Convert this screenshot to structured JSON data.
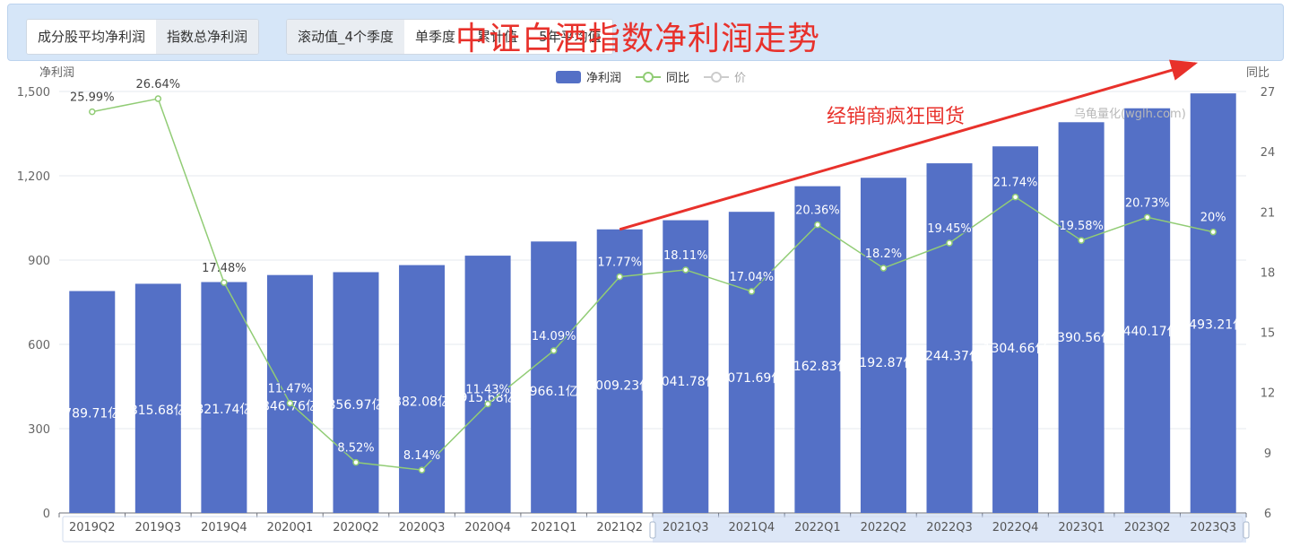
{
  "toolbar": {
    "group1": [
      "成分股平均净利润",
      "指数总净利润"
    ],
    "group2": [
      "滚动值_4个季度",
      "单季度",
      "累计值",
      "5年平均值"
    ]
  },
  "overlay_title": "中证白酒指数净利润走势",
  "annotation": "经销商疯狂囤货",
  "watermark": "乌龟量化(wglh.com)",
  "legend": {
    "bar": "净利润",
    "line": "同比",
    "price": "价"
  },
  "colors": {
    "bar": "#5470c6",
    "line": "#91cc75",
    "annotation": "#e8312b",
    "inactive": "#cccccc"
  },
  "chart_data": {
    "type": "bar",
    "categories": [
      "2019Q2",
      "2019Q3",
      "2019Q4",
      "2020Q1",
      "2020Q2",
      "2020Q3",
      "2020Q4",
      "2021Q1",
      "2021Q2",
      "2021Q3",
      "2021Q4",
      "2022Q1",
      "2022Q2",
      "2022Q3",
      "2022Q4",
      "2023Q1",
      "2023Q2",
      "2023Q3"
    ],
    "series": [
      {
        "name": "净利润",
        "type": "bar",
        "axis": "left",
        "values": [
          789.71,
          815.68,
          821.74,
          846.76,
          856.97,
          882.08,
          915.68,
          966.1,
          1009.23,
          1041.78,
          1071.69,
          1162.83,
          1192.87,
          1244.37,
          1304.66,
          1390.56,
          1440.17,
          1493.21
        ],
        "labels": [
          "789.71亿",
          "815.68亿",
          "821.74亿",
          "846.76亿",
          "856.97亿",
          "882.08亿",
          "915.68亿",
          "966.1亿",
          "1009.23亿",
          "1041.78亿",
          "1071.69亿",
          "1162.83亿",
          "1192.87亿",
          "1244.37亿",
          "1304.66亿",
          "1390.56亿",
          "1440.17亿",
          "1493.21亿"
        ]
      },
      {
        "name": "同比",
        "type": "line",
        "axis": "right",
        "values": [
          25.99,
          26.64,
          17.48,
          11.47,
          8.52,
          8.14,
          11.43,
          14.09,
          17.77,
          18.11,
          17.04,
          20.36,
          18.2,
          19.45,
          21.74,
          19.58,
          20.73,
          20
        ],
        "labels": [
          "25.99%",
          "26.64%",
          "17.48%",
          "11.47%",
          "8.52%",
          "8.14%",
          "11.43%",
          "14.09%",
          "17.77%",
          "18.11%",
          "17.04%",
          "20.36%",
          "18.2%",
          "19.45%",
          "21.74%",
          "19.58%",
          "20.73%",
          "20%"
        ]
      }
    ],
    "y_left": {
      "name": "净利润",
      "min": 0,
      "max": 1500,
      "ticks": [
        0,
        300,
        600,
        900,
        1200,
        1500
      ],
      "tick_labels": [
        "0",
        "300",
        "600",
        "900",
        "1,200",
        "1,500"
      ]
    },
    "y_right": {
      "name": "同比",
      "min": 6,
      "max": 27,
      "ticks": [
        6,
        9,
        12,
        15,
        18,
        21,
        24,
        27
      ],
      "tick_labels": [
        "6",
        "9",
        "12",
        "15",
        "18",
        "21",
        "24",
        "27"
      ]
    },
    "datazoom": {
      "start_category": "2021Q3",
      "end_category": "2023Q3"
    },
    "trend_arrow": {
      "from_category": "2021Q2",
      "from_value": 1009.23,
      "to_category": "2023Q3",
      "to_value": 1600
    },
    "grid": true,
    "legend_position": "top-center"
  }
}
